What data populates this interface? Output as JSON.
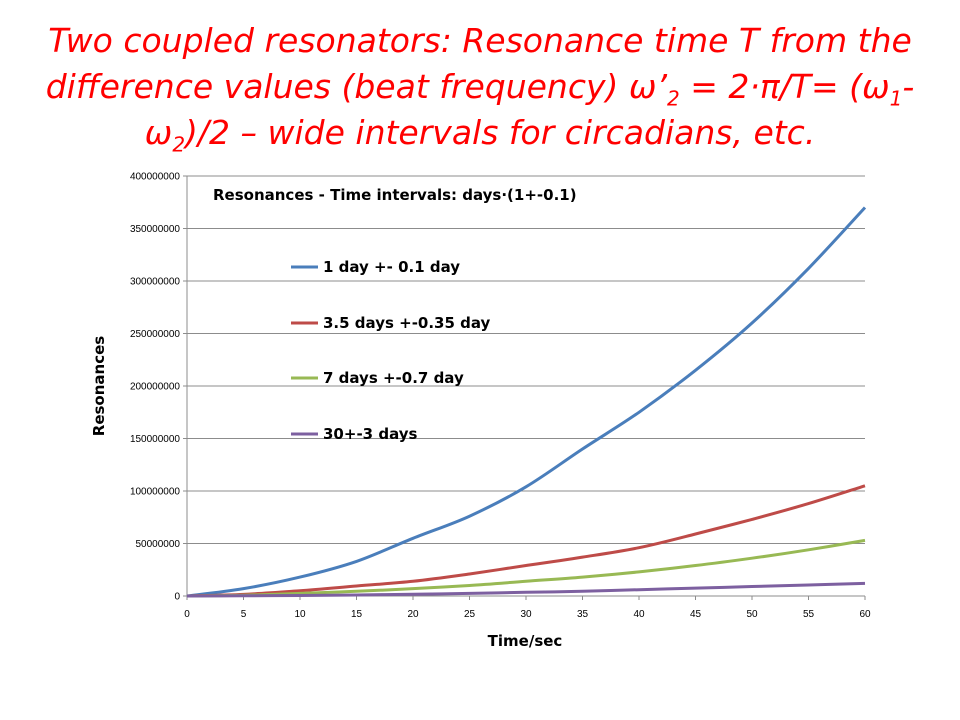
{
  "slide": {
    "title_parts": [
      {
        "t": "Two coupled resonators: Resonance time T from the difference values (beat frequency) ω’"
      },
      {
        "t": "2",
        "sub": true
      },
      {
        "t": " = 2·π/T= (ω"
      },
      {
        "t": "1",
        "sub": true
      },
      {
        "t": "- ω"
      },
      {
        "t": "2",
        "sub": true
      },
      {
        "t": ")/2 – wide intervals for circadians, etc."
      }
    ]
  },
  "chart_data": {
    "type": "line",
    "title": "Resonances -  Time intervals: days·(1+-0.1)",
    "xlabel": "Time/sec",
    "ylabel": "Resonances",
    "xlim": [
      0,
      60
    ],
    "ylim": [
      0,
      400000000
    ],
    "xticks": [
      "0",
      "5",
      "10",
      "15",
      "20",
      "25",
      "30",
      "35",
      "40",
      "45",
      "50",
      "55",
      "60"
    ],
    "yticks": [
      "0",
      "50000000",
      "100000000",
      "150000000",
      "200000000",
      "250000000",
      "300000000",
      "350000000",
      "400000000"
    ],
    "grid": "horizontal",
    "legend_position": "inside-left",
    "x": [
      0,
      5,
      10,
      15,
      20,
      25,
      30,
      35,
      40,
      45,
      50,
      55,
      60
    ],
    "series": [
      {
        "name": "1 day +- 0.1 day",
        "color": "#4a7ebb",
        "values": [
          0,
          7000000,
          18000000,
          33000000,
          55000000,
          76000000,
          104000000,
          140000000,
          175000000,
          215000000,
          260000000,
          312000000,
          370000000
        ]
      },
      {
        "name": "3.5 days +-0.35 day",
        "color": "#be4b48",
        "values": [
          0,
          1500000,
          5000000,
          9500000,
          14000000,
          21000000,
          29000000,
          37000000,
          46000000,
          59000000,
          73000000,
          88000000,
          105000000
        ]
      },
      {
        "name": "7 days +-0.7 day",
        "color": "#98b954",
        "values": [
          0,
          700000,
          2500000,
          4500000,
          7000000,
          10000000,
          14000000,
          18000000,
          23000000,
          29000000,
          36000000,
          44000000,
          53000000
        ]
      },
      {
        "name": "30+-3 days",
        "color": "#7d60a0",
        "values": [
          0,
          200000,
          500000,
          1000000,
          1700000,
          2500000,
          3500000,
          4500000,
          6000000,
          7500000,
          9000000,
          10500000,
          12000000
        ]
      }
    ]
  }
}
